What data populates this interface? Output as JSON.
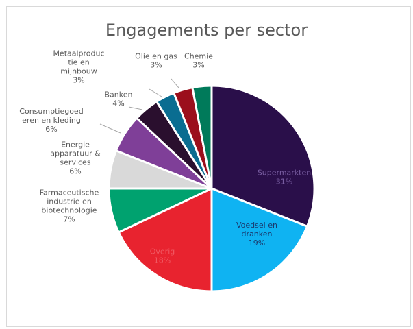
{
  "chart_data": {
    "type": "pie",
    "title": "Engagements per sector",
    "slices": [
      {
        "label": "Supermarkten",
        "value": 31,
        "value_label": "31%",
        "color": "#2a0f4a",
        "label_color": "#7a5fa3"
      },
      {
        "label": "Voedsel en dranken",
        "value": 19,
        "value_label": "19%",
        "color": "#0fb3f2",
        "label_color": "#1a3a6e"
      },
      {
        "label": "Overig",
        "value": 18,
        "value_label": "18%",
        "color": "#e8232f",
        "label_color": "#f05a64"
      },
      {
        "label": "Farmaceutische industrie en biotechnologie",
        "value": 7,
        "value_label": "7%",
        "color": "#00a26f"
      },
      {
        "label": "Energie apparatuur & services",
        "value": 6,
        "value_label": "6%",
        "color": "#d9d9d9"
      },
      {
        "label": "Consumptiegoederen en kleding",
        "value": 6,
        "value_label": "6%",
        "color": "#7f3f98"
      },
      {
        "label": "Banken",
        "value": 4,
        "value_label": "4%",
        "color": "#2a0f2e"
      },
      {
        "label": "Metaalproductie en mijnbouw",
        "value": 3,
        "value_label": "3%",
        "color": "#0a6d91"
      },
      {
        "label": "Olie en gas",
        "value": 3,
        "value_label": "3%",
        "color": "#9b0f1c"
      },
      {
        "label": "Chemie",
        "value": 3,
        "value_label": "3%",
        "color": "#007a5a"
      }
    ],
    "display_labels": {
      "supermarkten": [
        "Supermarkten",
        "31%"
      ],
      "voedsel": [
        "Voedsel en",
        "dranken",
        "19%"
      ],
      "overig": [
        "Overig",
        "18%"
      ],
      "farma": [
        "Farmaceutische",
        "industrie en",
        "biotechnologie",
        "7%"
      ],
      "energie": [
        "Energie",
        "apparatuur &",
        "services",
        "6%"
      ],
      "consumptie": [
        "Consumptiegoed",
        "eren en kleding",
        "6%"
      ],
      "banken": [
        "Banken",
        "4%"
      ],
      "metaal": [
        "Metaalproduc",
        "tie en",
        "mijnbouw",
        "3%"
      ],
      "olie": [
        "Olie en gas",
        "3%"
      ],
      "chemie": [
        "Chemie",
        "3%"
      ]
    }
  }
}
